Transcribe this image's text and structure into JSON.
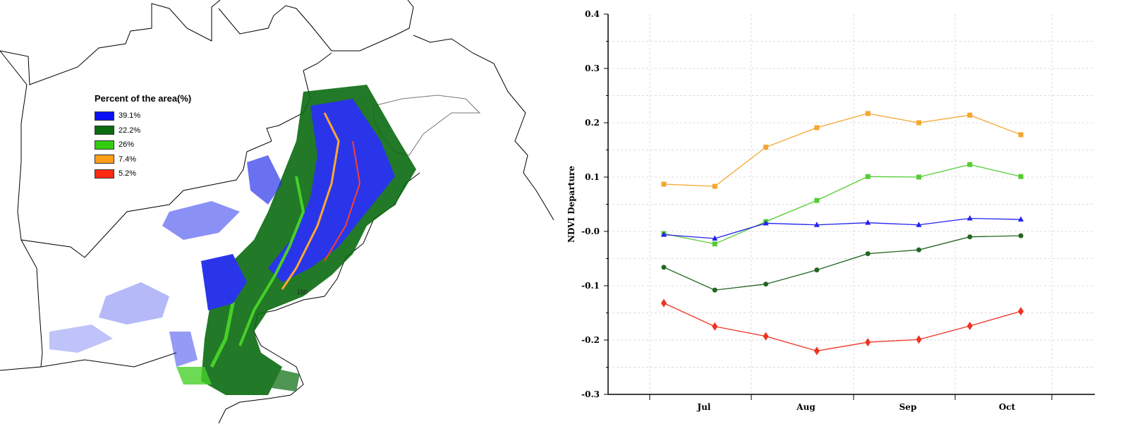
{
  "map": {
    "legend_title": "Percent of the area(%)",
    "legend": [
      {
        "label": "39.1%",
        "color": "#0a12f5"
      },
      {
        "label": "22.2%",
        "color": "#0b6b10"
      },
      {
        "label": "26%",
        "color": "#33cc11"
      },
      {
        "label": "7.4%",
        "color": "#ff9e1b"
      },
      {
        "label": "5.2%",
        "color": "#ff2a12"
      }
    ],
    "annotation": "150"
  },
  "chart_data": {
    "type": "line",
    "ylabel": "NDVI Departure",
    "xlabel": "",
    "ylim": [
      -0.3,
      0.4
    ],
    "yticks": [
      "0.4",
      "0.3",
      "0.2",
      "0.1",
      "-0.0",
      "-0.1",
      "-0.2",
      "-0.3"
    ],
    "month_labels": [
      "Jul",
      "Aug",
      "Sep",
      "Oct"
    ],
    "grid": true,
    "x": [
      1,
      2,
      3,
      4,
      5,
      6,
      7,
      8
    ],
    "series": [
      {
        "color": "#f4a62d",
        "marker": "square",
        "values": [
          0.087,
          0.083,
          0.155,
          0.191,
          0.217,
          0.2,
          0.214,
          0.178
        ]
      },
      {
        "color": "#55cc33",
        "marker": "square",
        "values": [
          -0.004,
          -0.023,
          0.018,
          0.057,
          0.101,
          0.1,
          0.123,
          0.101
        ]
      },
      {
        "color": "#2222ee",
        "marker": "triangle",
        "values": [
          -0.006,
          -0.013,
          0.015,
          0.012,
          0.016,
          0.012,
          0.024,
          0.022
        ]
      },
      {
        "color": "#226622",
        "marker": "circle",
        "values": [
          -0.066,
          -0.108,
          -0.097,
          -0.071,
          -0.041,
          -0.034,
          -0.01,
          -0.008
        ]
      },
      {
        "color": "#ee3322",
        "marker": "diamond",
        "values": [
          -0.132,
          -0.175,
          -0.193,
          -0.22,
          -0.204,
          -0.199,
          -0.174,
          -0.147
        ]
      }
    ]
  }
}
